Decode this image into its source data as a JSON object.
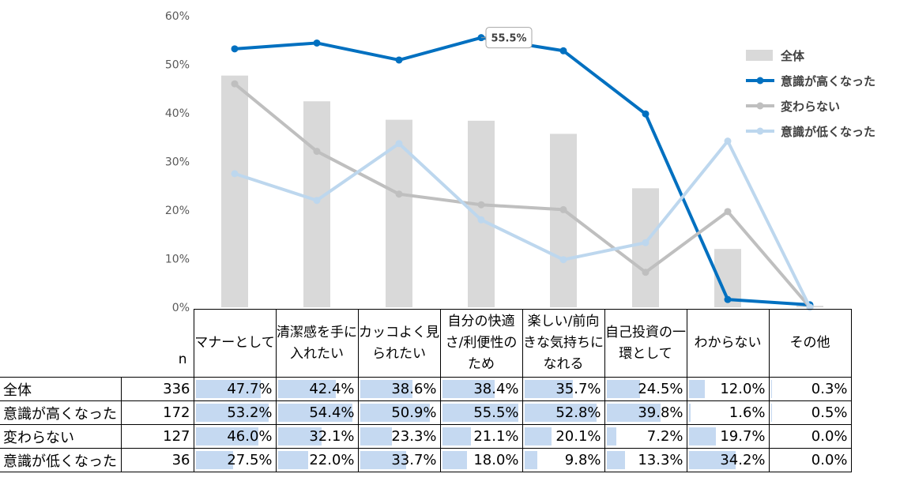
{
  "chart_data": {
    "type": "bar+line",
    "categories": [
      "マナーとして",
      "清潔感を手に入れたい",
      "カッコよく見られたい",
      "自分の快適さ/利便性のため",
      "楽しい/前向きな気持ちになれる",
      "自己投資の一環として",
      "わからない",
      "その他"
    ],
    "ylim": [
      0,
      60
    ],
    "yticks": [
      "0%",
      "10%",
      "20%",
      "30%",
      "40%",
      "50%",
      "60%"
    ],
    "series": [
      {
        "name": "全体",
        "kind": "bar",
        "color": "#d9d9d9",
        "values": [
          47.7,
          42.4,
          38.6,
          38.4,
          35.7,
          24.5,
          12.0,
          0.3
        ]
      },
      {
        "name": "意識が高くなった",
        "kind": "line",
        "color": "#0070c0",
        "values": [
          53.2,
          54.4,
          50.9,
          55.5,
          52.8,
          39.8,
          1.6,
          0.5
        ]
      },
      {
        "name": "変わらない",
        "kind": "line",
        "color": "#bfbfbf",
        "values": [
          46.0,
          32.1,
          23.3,
          21.1,
          20.1,
          7.2,
          19.7,
          0.0
        ]
      },
      {
        "name": "意識が低くなった",
        "kind": "line",
        "color": "#bdd7ee",
        "values": [
          27.5,
          22.0,
          33.7,
          18.0,
          9.8,
          13.3,
          34.2,
          0.0
        ]
      }
    ],
    "callout": {
      "series": "意識が高くなった",
      "category_index": 3,
      "label": "55.5%"
    },
    "legend_position": "right"
  },
  "table": {
    "n_header": "n",
    "rows": [
      {
        "label": "全体",
        "n": "336",
        "values": [
          "47.7%",
          "42.4%",
          "38.6%",
          "38.4%",
          "35.7%",
          "24.5%",
          "12.0%",
          "0.3%"
        ]
      },
      {
        "label": "意識が高くなった",
        "n": "172",
        "values": [
          "53.2%",
          "54.4%",
          "50.9%",
          "55.5%",
          "52.8%",
          "39.8%",
          "1.6%",
          "0.5%"
        ]
      },
      {
        "label": "変わらない",
        "n": "127",
        "values": [
          "46.0%",
          "32.1%",
          "23.3%",
          "21.1%",
          "20.1%",
          "7.2%",
          "19.7%",
          "0.0%"
        ]
      },
      {
        "label": "意識が低くなった",
        "n": "36",
        "values": [
          "27.5%",
          "22.0%",
          "33.7%",
          "18.0%",
          "9.8%",
          "13.3%",
          "34.2%",
          "0.0%"
        ]
      }
    ]
  }
}
